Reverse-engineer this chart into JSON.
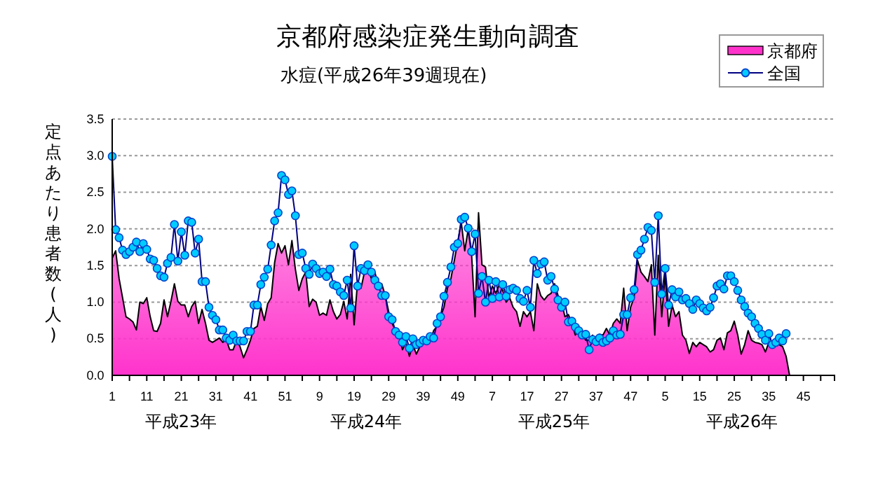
{
  "chart_data": {
    "type": "line",
    "title": "京都府感染症発生動向調査",
    "subtitle": "水痘(平成26年39週現在)",
    "ylabel": "定点あたり患者数(人)",
    "annotations": [
      "平成23年",
      "平成24年",
      "平成25年",
      "平成26年"
    ],
    "categories": [
      "1",
      null,
      null,
      null,
      null,
      null,
      null,
      null,
      null,
      null,
      "11",
      null,
      null,
      null,
      null,
      null,
      null,
      null,
      null,
      null,
      "21",
      null,
      null,
      null,
      null,
      null,
      null,
      null,
      null,
      null,
      "31",
      null,
      null,
      null,
      null,
      null,
      null,
      null,
      null,
      null,
      "41",
      null,
      null,
      null,
      null,
      null,
      null,
      null,
      null,
      null,
      "51",
      null,
      null,
      null,
      null,
      null,
      null,
      null,
      null,
      null,
      "9",
      null,
      null,
      null,
      null,
      null,
      null,
      null,
      null,
      null,
      "19",
      null,
      null,
      null,
      null,
      null,
      null,
      null,
      null,
      null,
      "29",
      null,
      null,
      null,
      null,
      null,
      null,
      null,
      null,
      null,
      "39",
      null,
      null,
      null,
      null,
      null,
      null,
      null,
      null,
      null,
      "49",
      null,
      null,
      null,
      null,
      null,
      null,
      null,
      null,
      null,
      "7",
      null,
      null,
      null,
      null,
      null,
      null,
      null,
      null,
      null,
      "17",
      null,
      null,
      null,
      null,
      null,
      null,
      null,
      null,
      null,
      "27",
      null,
      null,
      null,
      null,
      null,
      null,
      null,
      null,
      null,
      "37",
      null,
      null,
      null,
      null,
      null,
      null,
      null,
      null,
      null,
      "47",
      null,
      null,
      null,
      null,
      null,
      null,
      null,
      null,
      null,
      "5",
      null,
      null,
      null,
      null,
      null,
      null,
      null,
      null,
      null,
      "15",
      null,
      null,
      null,
      null,
      null,
      null,
      null,
      null,
      null,
      "25",
      null,
      null,
      null,
      null,
      null,
      null,
      null,
      null,
      null,
      "35",
      null,
      null,
      null,
      null,
      null,
      null,
      null,
      null,
      null,
      "45",
      null,
      null,
      null,
      null,
      null,
      null,
      null,
      null,
      null
    ],
    "series": [
      {
        "name": "京都府",
        "type": "area",
        "color": "#ff33cc",
        "values": [
          1.6,
          1.7,
          1.32,
          1.06,
          0.8,
          0.77,
          0.73,
          0.62,
          1.0,
          0.98,
          1.06,
          0.8,
          0.61,
          0.6,
          0.71,
          1.03,
          0.8,
          1.01,
          1.25,
          1.01,
          0.96,
          0.96,
          0.8,
          0.94,
          1.01,
          0.71,
          0.9,
          0.71,
          0.48,
          0.45,
          0.48,
          0.51,
          0.45,
          0.49,
          0.35,
          0.35,
          0.48,
          0.39,
          0.24,
          0.35,
          0.48,
          0.64,
          0.67,
          0.94,
          0.75,
          0.98,
          1.06,
          1.54,
          1.8,
          1.67,
          1.77,
          1.51,
          1.84,
          1.45,
          1.16,
          1.32,
          1.41,
          0.94,
          1.04,
          1.0,
          0.82,
          0.85,
          0.82,
          1.03,
          0.87,
          0.77,
          0.83,
          1.01,
          0.77,
          1.38,
          0.69,
          1.28,
          1.19,
          1.41,
          1.45,
          1.32,
          1.41,
          1.22,
          1.25,
          1.09,
          0.87,
          0.71,
          0.61,
          0.55,
          0.35,
          0.45,
          0.26,
          0.42,
          0.29,
          0.39,
          0.45,
          0.48,
          0.47,
          0.61,
          0.67,
          0.8,
          0.93,
          1.19,
          1.32,
          1.57,
          1.83,
          2.09,
          1.7,
          1.99,
          1.64,
          0.8,
          2.22,
          1.51,
          1.48,
          1.06,
          1.22,
          1.12,
          1.24,
          1.16,
          1.0,
          1.06,
          0.93,
          0.87,
          0.67,
          0.87,
          0.8,
          0.87,
          0.61,
          1.25,
          1.09,
          1.03,
          1.09,
          1.12,
          1.25,
          1.09,
          1.0,
          0.8,
          0.83,
          0.71,
          0.55,
          0.61,
          0.58,
          0.48,
          0.48,
          0.55,
          0.45,
          0.56,
          0.55,
          0.64,
          0.55,
          0.71,
          0.77,
          0.71,
          1.19,
          0.61,
          0.93,
          1.06,
          1.57,
          1.41,
          1.35,
          1.28,
          1.51,
          0.55,
          1.64,
          0.8,
          1.38,
          0.67,
          0.96,
          0.8,
          0.87,
          0.55,
          0.48,
          0.3,
          0.45,
          0.39,
          0.45,
          0.42,
          0.39,
          0.32,
          0.35,
          0.48,
          0.51,
          0.35,
          0.58,
          0.61,
          0.74,
          0.55,
          0.29,
          0.42,
          0.61,
          0.48,
          0.45,
          0.44,
          0.42,
          0.32,
          0.45,
          0.39,
          0.42,
          0.42,
          0.39,
          0.26,
          0,
          null,
          null,
          null,
          null,
          null,
          null,
          null,
          null,
          null,
          null,
          null,
          null,
          null
        ]
      },
      {
        "name": "全国",
        "marker": "circle",
        "color": "#00ccff",
        "values": [
          2.99,
          1.99,
          1.88,
          1.71,
          1.65,
          1.69,
          1.75,
          1.82,
          1.69,
          1.8,
          1.72,
          1.59,
          1.57,
          1.46,
          1.36,
          1.34,
          1.53,
          1.61,
          2.06,
          1.56,
          1.96,
          1.64,
          2.11,
          2.09,
          1.67,
          1.86,
          1.28,
          1.28,
          0.93,
          0.82,
          0.76,
          0.62,
          0.62,
          0.51,
          0.48,
          0.55,
          0.47,
          0.47,
          0.47,
          0.6,
          0.6,
          0.96,
          0.96,
          1.24,
          1.34,
          1.45,
          1.78,
          2.11,
          2.22,
          2.73,
          2.67,
          2.47,
          2.52,
          2.18,
          1.65,
          1.67,
          1.46,
          1.38,
          1.52,
          1.46,
          1.39,
          1.41,
          1.35,
          1.45,
          1.24,
          1.22,
          1.14,
          1.09,
          1.3,
          0.92,
          1.77,
          1.22,
          1.46,
          1.43,
          1.51,
          1.41,
          1.3,
          1.22,
          1.09,
          1.09,
          0.8,
          0.76,
          0.6,
          0.55,
          0.45,
          0.53,
          0.37,
          0.5,
          0.42,
          0.44,
          0.48,
          0.47,
          0.53,
          0.51,
          0.71,
          0.8,
          1.08,
          1.27,
          1.48,
          1.75,
          1.8,
          2.13,
          2.16,
          2.01,
          1.69,
          1.93,
          1.12,
          1.35,
          1.0,
          1.3,
          1.05,
          1.28,
          1.07,
          1.24,
          1.08,
          1.17,
          1.19,
          1.16,
          1.05,
          1.01,
          1.16,
          0.93,
          1.57,
          1.39,
          1.52,
          1.55,
          1.3,
          1.35,
          1.18,
          1.03,
          0.93,
          1.0,
          0.73,
          0.74,
          0.66,
          0.61,
          0.55,
          0.56,
          0.35,
          0.49,
          0.46,
          0.51,
          0.45,
          0.47,
          0.51,
          0.61,
          0.55,
          0.56,
          0.83,
          0.83,
          1.06,
          1.17,
          1.65,
          1.71,
          1.86,
          2.02,
          1.98,
          1.27,
          2.18,
          1.11,
          1.46,
          0.96,
          1.17,
          1.07,
          1.14,
          1.03,
          1.05,
          0.98,
          0.9,
          1.03,
          0.98,
          0.92,
          0.88,
          0.93,
          1.06,
          1.22,
          1.25,
          1.18,
          1.36,
          1.36,
          1.28,
          1.16,
          1.03,
          0.94,
          0.85,
          0.8,
          0.71,
          0.64,
          0.56,
          0.48,
          0.57,
          0.42,
          0.45,
          0.51,
          0.47,
          0.57,
          null,
          null,
          null,
          null,
          null,
          null,
          null,
          null,
          null,
          null,
          null,
          null,
          null,
          null
        ]
      }
    ],
    "ylim": [
      0,
      3.5
    ],
    "yticks": [
      {
        "value": 0,
        "label": "0.0"
      },
      {
        "value": 0.5,
        "label": "0.5"
      },
      {
        "value": 1,
        "label": "1.0"
      },
      {
        "value": 1.5,
        "label": "1.5"
      },
      {
        "value": 2,
        "label": "2.0"
      },
      {
        "value": 2.5,
        "label": "2.5"
      },
      {
        "value": 3,
        "label": "3.0"
      },
      {
        "value": 3.5,
        "label": "3.5"
      }
    ],
    "grid": "y",
    "legend": "top right"
  }
}
